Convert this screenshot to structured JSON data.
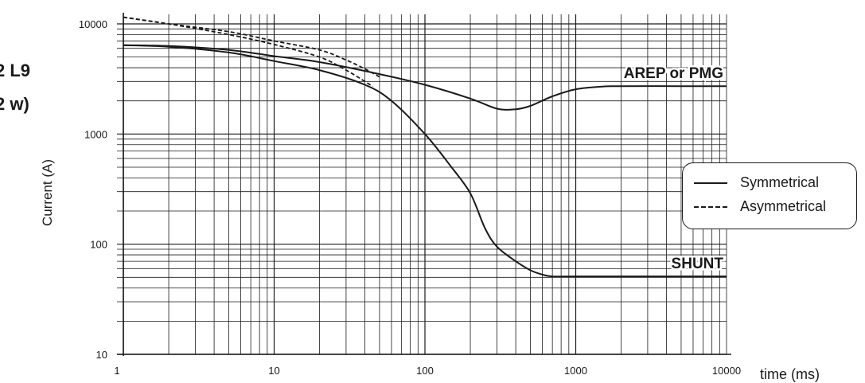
{
  "partial_title": {
    "line1": "2 L9",
    "line2": "2 w)"
  },
  "chart_data": {
    "type": "line",
    "x_scale": "log",
    "y_scale": "log",
    "xlim": [
      1,
      10000
    ],
    "ylim": [
      10,
      10000
    ],
    "xlabel": "time (ms)",
    "ylabel": "Current (A)",
    "x_ticks": [
      "1",
      "10",
      "100",
      "1000",
      "10000"
    ],
    "y_ticks": [
      "10",
      "100",
      "1000",
      "10000"
    ],
    "grid": true,
    "legend_placement": "right",
    "legend": [
      {
        "label": "Symmetrical",
        "style": "solid"
      },
      {
        "label": "Asymmetrical",
        "style": "dashed"
      }
    ],
    "annotations": [
      {
        "text": "AREP or PMG"
      },
      {
        "text": "SHUNT"
      }
    ],
    "series": [
      {
        "style": "solid",
        "label_ref": 0,
        "x": [
          1,
          2,
          5,
          10,
          20,
          50,
          100,
          200,
          300,
          400,
          500,
          700,
          1000,
          1500,
          2000,
          5000,
          10000
        ],
        "y": [
          6400,
          6300,
          5800,
          5100,
          4500,
          3500,
          2800,
          2100,
          1700,
          1680,
          1800,
          2200,
          2550,
          2700,
          2720,
          2720,
          2720
        ]
      },
      {
        "style": "solid",
        "label_ref": 1,
        "x": [
          1,
          2,
          5,
          10,
          20,
          40,
          60,
          100,
          150,
          200,
          250,
          300,
          400,
          500,
          600,
          700,
          1000,
          10000
        ],
        "y": [
          6400,
          6200,
          5500,
          4600,
          3800,
          2800,
          2000,
          1000,
          500,
          290,
          140,
          95,
          70,
          58,
          53,
          51,
          51,
          51
        ]
      },
      {
        "style": "dashed",
        "x": [
          1,
          2,
          5,
          10,
          20,
          30,
          40,
          50
        ],
        "y": [
          11500,
          10000,
          8500,
          7000,
          5800,
          4700,
          3900,
          3300
        ]
      },
      {
        "style": "dashed",
        "x": [
          1,
          2,
          5,
          10,
          20,
          30,
          40,
          45
        ],
        "y": [
          11500,
          10000,
          8000,
          6500,
          5000,
          3800,
          3000,
          2700
        ]
      }
    ]
  },
  "colors": {
    "line": "#1a1a1a",
    "grid": "#1a1a1a",
    "background": "#ffffff"
  }
}
